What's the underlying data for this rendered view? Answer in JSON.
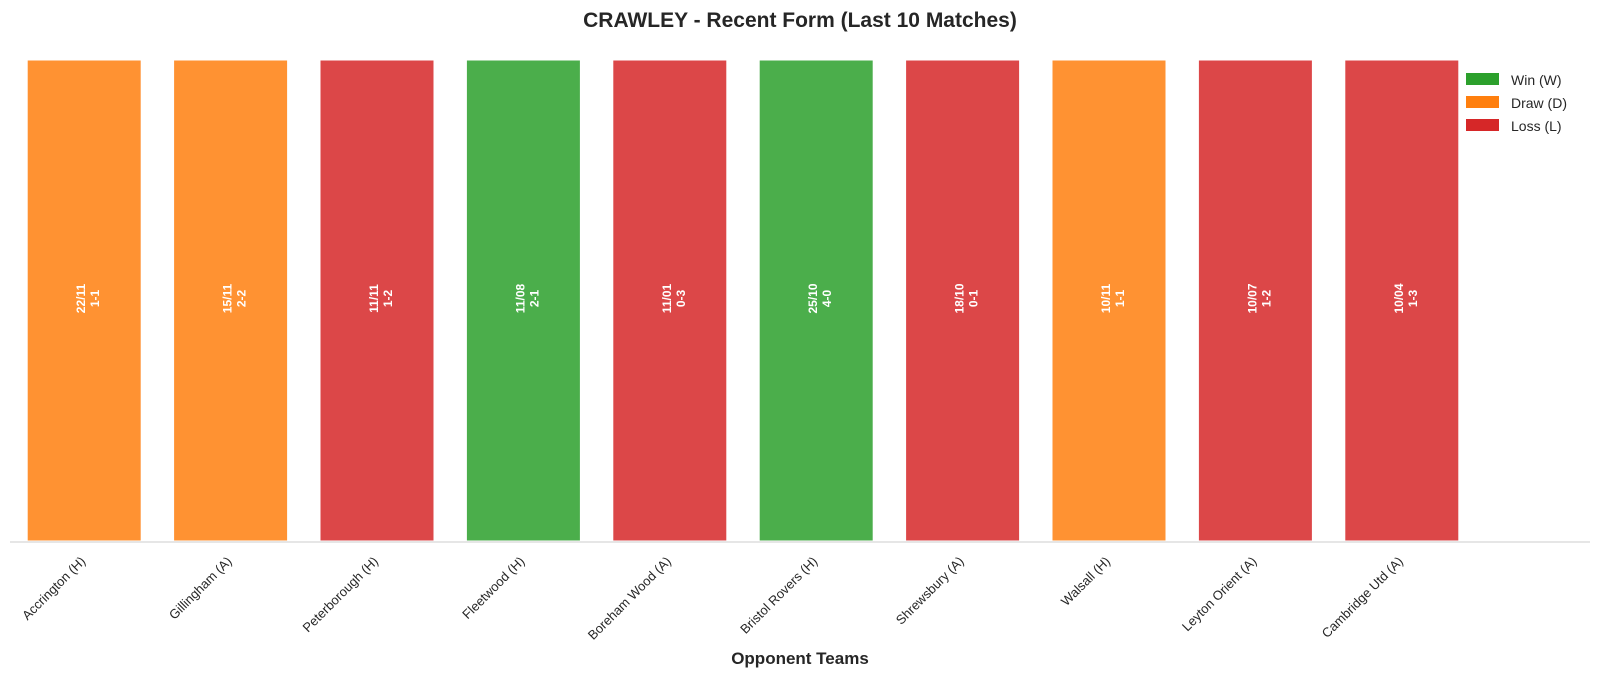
{
  "chart_data": {
    "type": "bar",
    "title": "CRAWLEY - Recent Form (Last 10 Matches)",
    "xlabel": "Opponent Teams",
    "ylabel": "",
    "ylim": [
      0,
      1
    ],
    "grid": false,
    "legend_placement": "top-right",
    "categories": [
      "Accrington (H)",
      "Gillingham (A)",
      "Peterborough (H)",
      "Fleetwood (H)",
      "Boreham Wood (A)",
      "Bristol Rovers (H)",
      "Shrewsbury (A)",
      "Walsall (H)",
      "Leyton Orient (A)",
      "Cambridge Utd (A)"
    ],
    "values": [
      1,
      1,
      1,
      1,
      1,
      1,
      1,
      1,
      1,
      1
    ],
    "results": [
      "D",
      "D",
      "L",
      "W",
      "L",
      "W",
      "L",
      "D",
      "L",
      "L"
    ],
    "dates": [
      "22/11",
      "15/11",
      "11/11",
      "11/08",
      "11/01",
      "25/10",
      "18/10",
      "10/11",
      "10/07",
      "10/04"
    ],
    "scores": [
      "1-1",
      "2-2",
      "1-2",
      "2-1",
      "0-3",
      "4-0",
      "0-1",
      "1-1",
      "1-2",
      "1-3"
    ],
    "legend": [
      {
        "key": "W",
        "label": "Win (W)",
        "color": "#2ca02c"
      },
      {
        "key": "D",
        "label": "Draw (D)",
        "color": "#ff7f0e"
      },
      {
        "key": "L",
        "label": "Loss (L)",
        "color": "#d62728"
      }
    ]
  }
}
